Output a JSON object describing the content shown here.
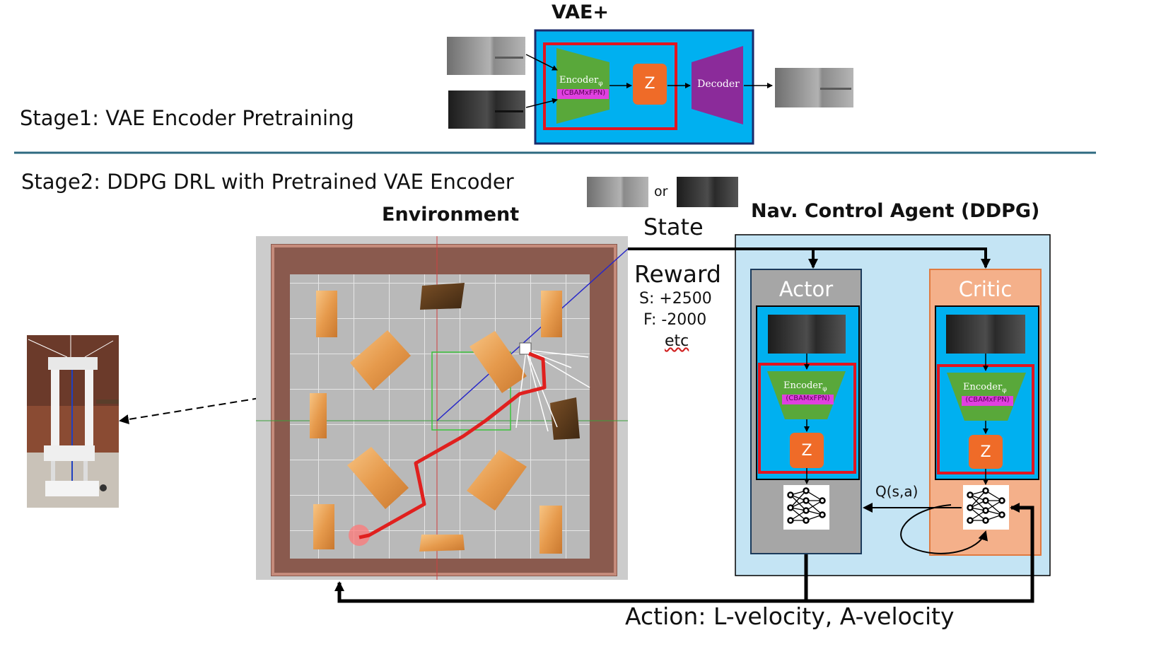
{
  "stage1": {
    "title": "VAE+",
    "label": "Stage1: VAE Encoder Pretraining",
    "encoder": "Encoder",
    "encoder_sub": "φ",
    "encoder_tag": "(CBAMxFPN)",
    "z": "Z",
    "decoder": "Decoder"
  },
  "stage2": {
    "label": "Stage2: DDPG DRL with Pretrained VAE Encoder",
    "or_text": "or",
    "state_label": "State",
    "environment_title": "Environment",
    "agent_title": "Nav. Control Agent (DDPG)",
    "reward": {
      "title": "Reward",
      "success": "S:  +2500",
      "fail": "F:  -2000",
      "etc": "etc"
    },
    "actor": {
      "title": "Actor",
      "encoder": "Encoder",
      "encoder_sub": "φ",
      "encoder_tag": "(CBAMxFPN)",
      "z": "Z"
    },
    "critic": {
      "title": "Critic",
      "encoder": "Encoder",
      "encoder_sub": "φ",
      "encoder_tag": "(CBAMxFPN)",
      "z": "Z"
    },
    "q_label": "Q(s,a)",
    "action_label": "Action: L-velocity, A-velocity"
  },
  "colors": {
    "divider": "#2e6a80",
    "vae_bg": "#00b0f0",
    "encoder": "#59a83a",
    "z": "#ef6b28",
    "decoder": "#8b2b9a",
    "agent_bg": "#c4e4f4",
    "actor_bg": "#a6a6a6",
    "critic_bg": "#f4b08a",
    "highlight": "#e3141f",
    "tag": "#e040e0",
    "path": "#e0201e"
  }
}
